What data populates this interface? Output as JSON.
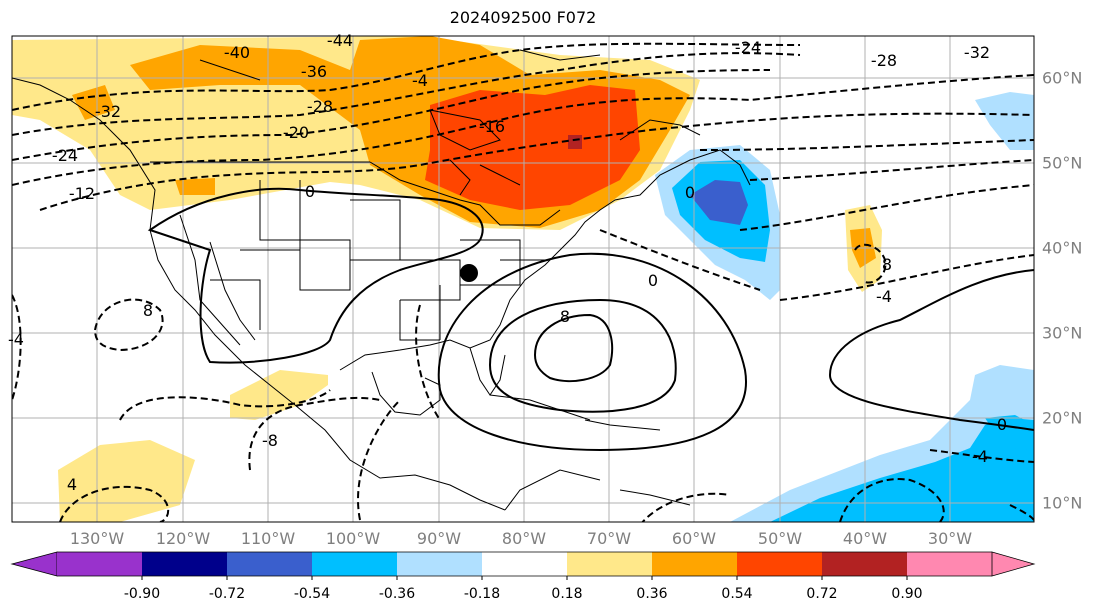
{
  "title": "2024092500 F072",
  "lon_labels": [
    "130°W",
    "120°W",
    "110°W",
    "100°W",
    "90°W",
    "80°W",
    "70°W",
    "60°W",
    "50°W",
    "40°W",
    "30°W"
  ],
  "lat_labels": [
    "60°N",
    "50°N",
    "40°N",
    "30°N",
    "20°N",
    "10°N"
  ],
  "contour_labels": [
    "-44",
    "-40",
    "-36",
    "-32",
    "-28",
    "-24",
    "-24",
    "-20",
    "-16",
    "-12",
    "-28",
    "-32",
    "0",
    "0",
    "0",
    "8",
    "8",
    "8",
    "-4",
    "-4",
    "-4",
    "4",
    "-8",
    "0",
    "-4"
  ],
  "colorbar": {
    "labels": [
      "-0.90",
      "-0.72",
      "-0.54",
      "-0.36",
      "-0.18",
      "0.18",
      "0.36",
      "0.54",
      "0.72",
      "0.90"
    ],
    "colors": [
      "#9932cc",
      "#00008b",
      "#3a5fcd",
      "#00bfff",
      "#b0e0ff",
      "#ffffff",
      "#ffe88a",
      "#ffa500",
      "#ff4500",
      "#b22222",
      "#ff88b0"
    ]
  },
  "map_colors": {
    "yellow": "#ffe88a",
    "orange": "#ffa500",
    "red": "#ff4500",
    "darkred": "#b22222",
    "lightblue": "#b0e0ff",
    "cyan": "#00bfff",
    "blue": "#3a5fcd"
  }
}
